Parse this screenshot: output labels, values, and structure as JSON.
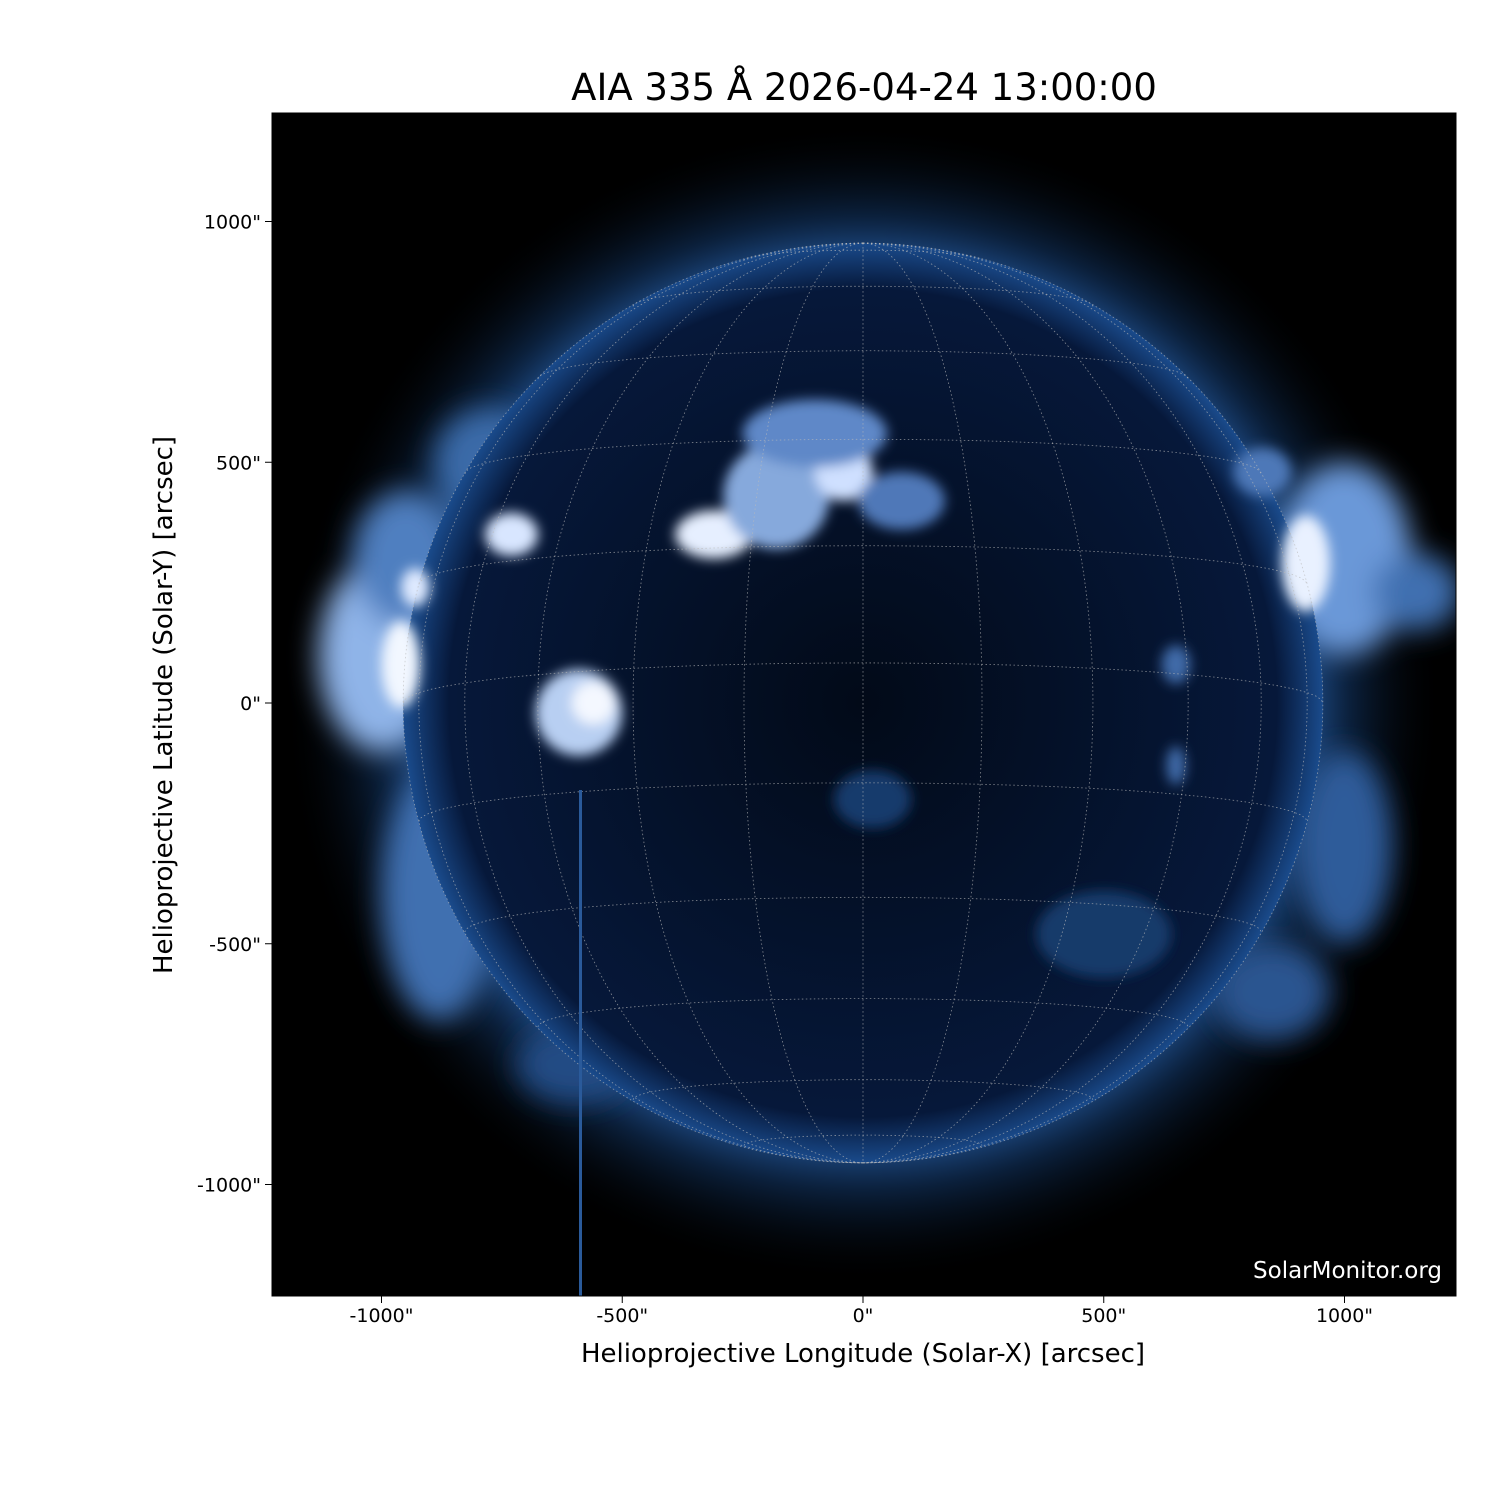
{
  "chart_data": {
    "type": "image",
    "title": "AIA 335 Å 2026-04-24 13:00:00",
    "xlabel": "Helioprojective Longitude (Solar-X) [arcsec]",
    "ylabel": "Helioprojective Latitude (Solar-Y) [arcsec]",
    "xlim": [
      -1229,
      1233
    ],
    "ylim": [
      -1231,
      1230
    ],
    "xticks": [
      -1000,
      -500,
      0,
      500,
      1000
    ],
    "yticks": [
      -1000,
      -500,
      0,
      500,
      1000
    ],
    "xtick_labels": [
      "-1000\"",
      "-500\"",
      "0\"",
      "500\"",
      "1000\""
    ],
    "ytick_labels": [
      "-1000\"",
      "-500\"",
      "0\"",
      "500\"",
      "1000\""
    ],
    "solar_radius_arcsec": 955,
    "grid_spacing_deg": 15,
    "colormap": "sdoaia335",
    "colors": {
      "background": "#000000",
      "disk": "#05142a",
      "corona": "#2a5a9a",
      "bright": "#e8f0ff",
      "grid": "#bbbbbb"
    },
    "watermark": "SolarMonitor.org"
  }
}
